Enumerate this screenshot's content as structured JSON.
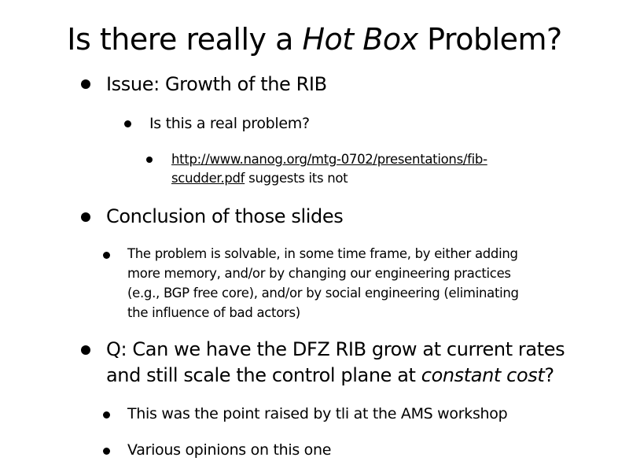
{
  "slide": {
    "title": {
      "before": "Is there really a ",
      "emphasis": "Hot Box",
      "after": " Problem?"
    },
    "items": {
      "issue": "Issue: Growth of the RIB",
      "real_problem": "Is this a real problem?",
      "link_line1": "http://www.nanog.org/mtg-0702/presentations/fib-",
      "link_line2": "scudder.pdf",
      "link_suffix": " suggests its not",
      "conclusion": "Conclusion of those slides",
      "solvable_1": "The problem is solvable, in some time frame, by either adding",
      "solvable_2": "more memory, and/or by changing our engineering practices",
      "solvable_3": "(e.g., BGP free core), and/or by social engineering (eliminating",
      "solvable_4": "the influence of bad actors)",
      "question_1": "Q: Can we have the DFZ RIB grow at current rates",
      "question_2_before": "and still scale the control plane at ",
      "question_2_emphasis": "constant cost",
      "question_2_after": "?",
      "point_raised": "This was the point raised by tli at the AMS workshop",
      "opinions": "Various opinions on this one"
    }
  }
}
